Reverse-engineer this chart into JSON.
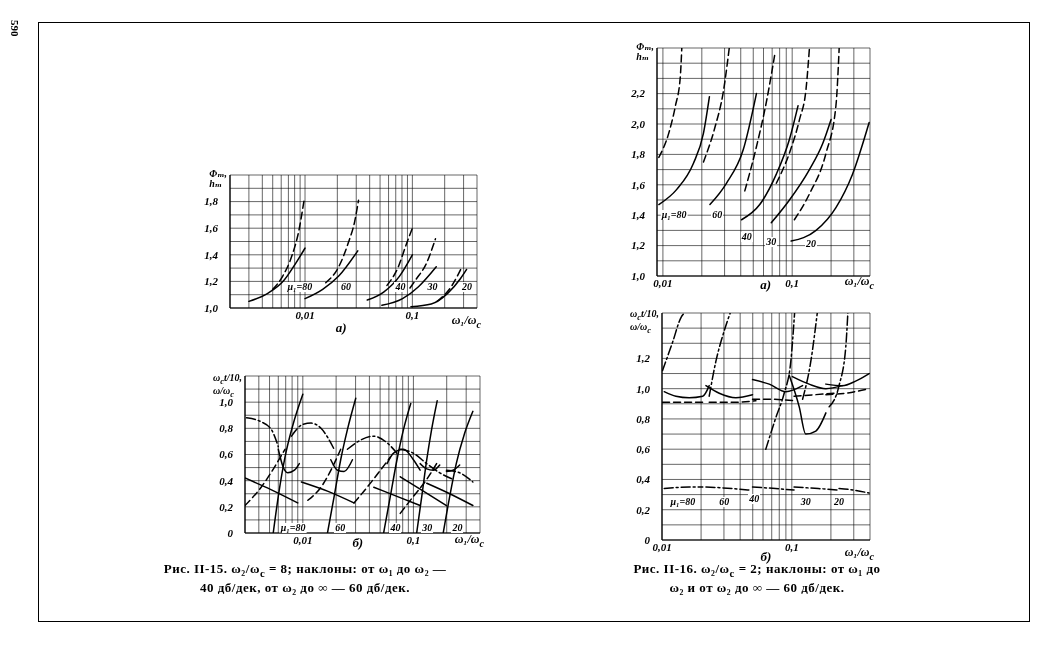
{
  "chart_data": [
    {
      "type": "line",
      "title": "а)",
      "xlabel": "ω₁/ω$_{c}$",
      "ylabel": "Φₘ, hₘ",
      "log": "x",
      "grid": true,
      "xlim": [
        0.002,
        0.4
      ],
      "xticks": [
        {
          "value": 0.002,
          "label": null
        },
        {
          "value": 0.003,
          "label": null
        },
        {
          "value": 0.004,
          "label": null
        },
        {
          "value": 0.005,
          "label": null
        },
        {
          "value": 0.006,
          "label": null
        },
        {
          "value": 0.007,
          "label": null
        },
        {
          "value": 0.008,
          "label": null
        },
        {
          "value": 0.009,
          "label": null
        },
        {
          "value": 0.01,
          "label": "0,01"
        },
        {
          "value": 0.02,
          "label": null
        },
        {
          "value": 0.03,
          "label": null
        },
        {
          "value": 0.04,
          "label": null
        },
        {
          "value": 0.05,
          "label": null
        },
        {
          "value": 0.06,
          "label": null
        },
        {
          "value": 0.07,
          "label": null
        },
        {
          "value": 0.08,
          "label": null
        },
        {
          "value": 0.09,
          "label": null
        },
        {
          "value": 0.1,
          "label": "0,1"
        },
        {
          "value": 0.2,
          "label": null
        },
        {
          "value": 0.3,
          "label": null
        },
        {
          "value": 0.4,
          "label": null
        }
      ],
      "ylim": [
        1,
        2
      ],
      "yticks": [
        {
          "value": 1,
          "label": "1,0"
        },
        {
          "value": 1.1,
          "label": null
        },
        {
          "value": 1.2,
          "label": "1,2"
        },
        {
          "value": 1.3,
          "label": null
        },
        {
          "value": 1.4,
          "label": "1,4"
        },
        {
          "value": 1.5,
          "label": null
        },
        {
          "value": 1.6,
          "label": "1,6"
        },
        {
          "value": 1.7,
          "label": null
        },
        {
          "value": 1.8,
          "label": "1,8"
        },
        {
          "value": 1.9,
          "label": null
        },
        {
          "value": 2,
          "label": null
        }
      ],
      "series": [
        {
          "color": "#000000",
          "line_style": "solid",
          "x": [
            0.003,
            0.0045,
            0.0064,
            0.0081,
            0.01
          ],
          "values": [
            1.05,
            1.11,
            1.21,
            1.33,
            1.45
          ]
        },
        {
          "color": "#000000",
          "line_style": "dashed",
          "x": [
            0.005,
            0.0062,
            0.0076,
            0.0087,
            0.0098
          ],
          "values": [
            1.14,
            1.24,
            1.4,
            1.57,
            1.81
          ]
        },
        {
          "color": "#000000",
          "line_style": "solid",
          "x": [
            0.01,
            0.0146,
            0.0206,
            0.031
          ],
          "values": [
            1.07,
            1.14,
            1.24,
            1.43
          ]
        },
        {
          "color": "#000000",
          "line_style": "dashed",
          "x": [
            0.0156,
            0.0206,
            0.0253,
            0.029,
            0.0315
          ],
          "values": [
            1.19,
            1.31,
            1.49,
            1.65,
            1.81
          ]
        },
        {
          "color": "#000000",
          "line_style": "solid",
          "x": [
            0.038,
            0.054,
            0.076,
            0.1
          ],
          "values": [
            1.06,
            1.12,
            1.24,
            1.4
          ]
        },
        {
          "color": "#000000",
          "line_style": "dashed",
          "x": [
            0.058,
            0.074,
            0.087,
            0.1
          ],
          "values": [
            1.17,
            1.31,
            1.47,
            1.6
          ]
        },
        {
          "color": "#000000",
          "line_style": "solid",
          "x": [
            0.052,
            0.081,
            0.114,
            0.167
          ],
          "values": [
            1.02,
            1.07,
            1.16,
            1.31
          ]
        },
        {
          "color": "#000000",
          "line_style": "dashed",
          "x": [
            0.095,
            0.107,
            0.136,
            0.164
          ],
          "values": [
            1.15,
            1.21,
            1.34,
            1.52
          ]
        },
        {
          "color": "#000000",
          "line_style": "solid",
          "x": [
            0.097,
            0.15,
            0.213,
            0.28,
            0.32
          ],
          "values": [
            1.01,
            1.03,
            1.11,
            1.22,
            1.29
          ]
        },
        {
          "color": "#000000",
          "line_style": "dashed",
          "x": [
            0.17,
            0.23,
            0.29
          ],
          "values": [
            1.05,
            1.16,
            1.31
          ]
        }
      ],
      "annotations": [
        "590",
        "μ₁=80",
        "60",
        "40",
        "30",
        "20"
      ]
    },
    {
      "type": "line",
      "title": "б)",
      "xlabel": "ω₁/ω$_{c}$",
      "ylabel": "ω$_{c}$t/10, ω/ω$_{c}$",
      "log": "x",
      "grid": true,
      "xlim": [
        0.003,
        0.4
      ],
      "xticks": [
        {
          "value": 0.003,
          "label": null
        },
        {
          "value": 0.004,
          "label": null
        },
        {
          "value": 0.005,
          "label": null
        },
        {
          "value": 0.006,
          "label": null
        },
        {
          "value": 0.007,
          "label": null
        },
        {
          "value": 0.008,
          "label": null
        },
        {
          "value": 0.009,
          "label": null
        },
        {
          "value": 0.01,
          "label": "0,01"
        },
        {
          "value": 0.02,
          "label": null
        },
        {
          "value": 0.03,
          "label": null
        },
        {
          "value": 0.04,
          "label": null
        },
        {
          "value": 0.05,
          "label": null
        },
        {
          "value": 0.06,
          "label": null
        },
        {
          "value": 0.07,
          "label": null
        },
        {
          "value": 0.08,
          "label": null
        },
        {
          "value": 0.09,
          "label": null
        },
        {
          "value": 0.1,
          "label": "0,1"
        },
        {
          "value": 0.2,
          "label": null
        },
        {
          "value": 0.3,
          "label": null
        },
        {
          "value": 0.4,
          "label": null
        }
      ],
      "ylim": [
        0,
        1.2
      ],
      "yticks": [
        0,
        {
          "value": 0.1,
          "label": null
        },
        {
          "value": 0.2,
          "label": "0,2"
        },
        {
          "value": 0.3,
          "label": null
        },
        {
          "value": 0.4,
          "label": "0,4"
        },
        {
          "value": 0.5,
          "label": null
        },
        {
          "value": 0.6,
          "label": "0,6"
        },
        {
          "value": 0.7,
          "label": null
        },
        {
          "value": 0.8,
          "label": "0,8"
        },
        {
          "value": 0.9,
          "label": null
        },
        {
          "value": 1,
          "label": "1,0"
        },
        {
          "value": 1.1,
          "label": null
        },
        {
          "value": 1.2,
          "label": null
        }
      ],
      "series": [
        {
          "color": "#000000",
          "line_style": "solid",
          "x": [
            0.0054,
            0.006,
            0.0069,
            0.0081,
            0.01
          ],
          "values": [
            0,
            0.28,
            0.58,
            0.82,
            1.06
          ]
        },
        {
          "color": "#000000",
          "line_style": "solid",
          "x": [
            0.003,
            0.0052,
            0.009
          ],
          "values": [
            0.42,
            0.33,
            0.23
          ]
        },
        {
          "color": "#000000",
          "line_style": "dashed",
          "x": [
            0.003,
            0.0042,
            0.0056,
            0.0069
          ],
          "values": [
            0.21,
            0.35,
            0.51,
            0.64
          ]
        },
        {
          "color": "#000000",
          "line_style": "dashdot",
          "x": [
            0.0031,
            0.0042,
            0.0052,
            0.006
          ],
          "values": [
            0.88,
            0.85,
            0.79,
            0.66
          ]
        },
        {
          "color": "#000000",
          "line_style": "solid",
          "x": [
            0.006,
            0.0066,
            0.0073,
            0.0084,
            0.0093
          ],
          "values": [
            0.64,
            0.51,
            0.46,
            0.48,
            0.53
          ]
        },
        {
          "color": "#000000",
          "line_style": "solid",
          "x": [
            0.0167,
            0.0192,
            0.022,
            0.0253,
            0.0301
          ],
          "values": [
            0,
            0.28,
            0.56,
            0.79,
            1.03
          ]
        },
        {
          "color": "#000000",
          "line_style": "solid",
          "x": [
            0.0097,
            0.0167,
            0.029
          ],
          "values": [
            0.39,
            0.32,
            0.23
          ]
        },
        {
          "color": "#000000",
          "line_style": "dashed",
          "x": [
            0.0111,
            0.0146,
            0.0192,
            0.022
          ],
          "values": [
            0.25,
            0.35,
            0.53,
            0.64
          ]
        },
        {
          "color": "#000000",
          "line_style": "dashdot",
          "x": [
            0.0079,
            0.01,
            0.0119,
            0.0146,
            0.0192
          ],
          "values": [
            0.74,
            0.83,
            0.84,
            0.8,
            0.64
          ]
        },
        {
          "color": "#000000",
          "line_style": "solid",
          "x": [
            0.0179,
            0.0206,
            0.0236,
            0.0281
          ],
          "values": [
            0.56,
            0.48,
            0.47,
            0.56
          ]
        },
        {
          "color": "#000000",
          "line_style": "solid",
          "x": [
            0.0538,
            0.0618,
            0.071,
            0.0813,
            0.0946
          ],
          "values": [
            0,
            0.28,
            0.56,
            0.79,
            0.99
          ]
        },
        {
          "color": "#000000",
          "line_style": "solid",
          "x": [
            0.0438,
            0.071,
            0.115
          ],
          "values": [
            0.35,
            0.28,
            0.21
          ]
        },
        {
          "color": "#000000",
          "line_style": "dashed",
          "x": [
            0.029,
            0.0382,
            0.0503,
            0.0618
          ],
          "values": [
            0.23,
            0.35,
            0.48,
            0.58
          ]
        },
        {
          "color": "#000000",
          "line_style": "dashdot",
          "x": [
            0.0253,
            0.0333,
            0.0438,
            0.0577,
            0.071
          ],
          "values": [
            0.64,
            0.71,
            0.74,
            0.69,
            0.61
          ]
        },
        {
          "color": "#000000",
          "line_style": "solid",
          "x": [
            0.0577,
            0.0662,
            0.0813,
            0.1,
            0.115
          ],
          "values": [
            0.53,
            0.61,
            0.64,
            0.56,
            0.48
          ]
        },
        {
          "color": "#000000",
          "line_style": "solid",
          "x": [
            0.107,
            0.119,
            0.132,
            0.146,
            0.164
          ],
          "values": [
            0,
            0.28,
            0.56,
            0.79,
            1.01
          ]
        },
        {
          "color": "#000000",
          "line_style": "solid",
          "x": [
            0.076,
            0.123,
            0.199
          ],
          "values": [
            0.43,
            0.32,
            0.21
          ]
        },
        {
          "color": "#000000",
          "line_style": "dashed",
          "x": [
            0.076,
            0.1,
            0.132,
            0.162
          ],
          "values": [
            0.15,
            0.28,
            0.41,
            0.53
          ]
        },
        {
          "color": "#000000",
          "line_style": "dashdot",
          "x": [
            0.076,
            0.1,
            0.132,
            0.173,
            0.228
          ],
          "values": [
            0.64,
            0.61,
            0.53,
            0.46,
            0.41
          ]
        },
        {
          "color": "#000000",
          "line_style": "solid",
          "x": [
            0.115,
            0.132,
            0.151,
            0.173
          ],
          "values": [
            0.53,
            0.49,
            0.48,
            0.52
          ]
        },
        {
          "color": "#000000",
          "line_style": "solid",
          "x": [
            0.186,
            0.213,
            0.244,
            0.29,
            0.345
          ],
          "values": [
            0,
            0.28,
            0.53,
            0.76,
            0.93
          ]
        },
        {
          "color": "#000000",
          "line_style": "solid",
          "x": [
            0.132,
            0.213,
            0.345
          ],
          "values": [
            0.38,
            0.3,
            0.21
          ]
        },
        {
          "color": "#000000",
          "line_style": "dashdot",
          "x": [
            0.199,
            0.262,
            0.345
          ],
          "values": [
            0.48,
            0.46,
            0.39
          ]
        },
        {
          "color": "#000000",
          "line_style": "solid",
          "x": [
            0.199,
            0.228,
            0.262
          ],
          "values": [
            0.47,
            0.48,
            0.52
          ]
        }
      ],
      "annotations": [
        "Рис. II-15. ω₂/ω$_{c}$ = 8; наклоны: от ω₁ до ω₂ — 40 дб/дек, от ω₂ до ∞ — 60 дб/дек.",
        "μ₁=80",
        "60",
        "40",
        "30",
        "20"
      ]
    },
    {
      "type": "line",
      "title": "а)",
      "xlabel": "ω₁/ω$_{c}$",
      "ylabel": "Φₘ, hₘ",
      "log": "x",
      "grid": true,
      "xlim": [
        0.009,
        0.4
      ],
      "xticks": [
        {
          "value": 0.009,
          "label": null
        },
        {
          "value": 0.01,
          "label": "0,01"
        },
        {
          "value": 0.02,
          "label": null
        },
        {
          "value": 0.03,
          "label": null
        },
        {
          "value": 0.04,
          "label": null
        },
        {
          "value": 0.05,
          "label": null
        },
        {
          "value": 0.06,
          "label": null
        },
        {
          "value": 0.07,
          "label": null
        },
        {
          "value": 0.08,
          "label": null
        },
        {
          "value": 0.09,
          "label": null
        },
        {
          "value": 0.1,
          "label": "0,1"
        },
        {
          "value": 0.2,
          "label": null
        },
        {
          "value": 0.3,
          "label": null
        },
        {
          "value": 0.4,
          "label": null
        }
      ],
      "ylim": [
        1,
        2.5
      ],
      "yticks": [
        {
          "value": 1,
          "label": "1,0"
        },
        {
          "value": 1.1,
          "label": null
        },
        {
          "value": 1.2,
          "label": "1,2"
        },
        {
          "value": 1.3,
          "label": null
        },
        {
          "value": 1.4,
          "label": "1,4"
        },
        {
          "value": 1.5,
          "label": null
        },
        {
          "value": 1.6,
          "label": "1,6"
        },
        {
          "value": 1.7,
          "label": null
        },
        {
          "value": 1.8,
          "label": "1,8"
        },
        {
          "value": 1.9,
          "label": null
        },
        {
          "value": 2,
          "label": "2,0"
        },
        {
          "value": 2.1,
          "label": null
        },
        {
          "value": 2.2,
          "label": "2,2"
        },
        {
          "value": 2.3,
          "label": null
        },
        {
          "value": 2.4,
          "label": null
        },
        {
          "value": 2.5,
          "label": null
        }
      ],
      "series": [
        {
          "color": "#000000",
          "line_style": "solid",
          "x": [
            0.0093,
            0.0128,
            0.0172,
            0.0206,
            0.0229
          ],
          "values": [
            1.47,
            1.57,
            1.74,
            1.94,
            2.18
          ]
        },
        {
          "color": "#000000",
          "line_style": "dashed",
          "x": [
            0.0093,
            0.0111,
            0.0125,
            0.0136,
            0.014
          ],
          "values": [
            1.78,
            1.94,
            2.12,
            2.3,
            2.5
          ]
        },
        {
          "color": "#000000",
          "line_style": "solid",
          "x": [
            0.0231,
            0.031,
            0.0418,
            0.0529
          ],
          "values": [
            1.47,
            1.61,
            1.83,
            2.2
          ]
        },
        {
          "color": "#000000",
          "line_style": "dashed",
          "x": [
            0.0206,
            0.0253,
            0.0293,
            0.0326
          ],
          "values": [
            1.75,
            1.98,
            2.21,
            2.5
          ]
        },
        {
          "color": "#000000",
          "line_style": "solid",
          "x": [
            0.0406,
            0.0561,
            0.0754,
            0.0953,
            0.111
          ],
          "values": [
            1.37,
            1.47,
            1.67,
            1.9,
            2.12
          ]
        },
        {
          "color": "#000000",
          "line_style": "dashed",
          "x": [
            0.043,
            0.0529,
            0.063,
            0.0731
          ],
          "values": [
            1.56,
            1.85,
            2.14,
            2.45
          ]
        },
        {
          "color": "#000000",
          "line_style": "solid",
          "x": [
            0.0689,
            0.0953,
            0.136,
            0.172,
            0.2
          ],
          "values": [
            1.35,
            1.5,
            1.7,
            1.87,
            2.03
          ]
        },
        {
          "color": "#000000",
          "line_style": "dashed",
          "x": [
            0.0754,
            0.0953,
            0.114,
            0.128,
            0.136
          ],
          "values": [
            1.61,
            1.81,
            2.03,
            2.23,
            2.5
          ]
        },
        {
          "color": "#000000",
          "line_style": "solid",
          "x": [
            0.0982,
            0.153,
            0.218,
            0.293,
            0.394
          ],
          "values": [
            1.23,
            1.3,
            1.45,
            1.67,
            2.01
          ]
        },
        {
          "color": "#000000",
          "line_style": "dashed",
          "x": [
            0.104,
            0.136,
            0.183,
            0.218,
            0.231
          ],
          "values": [
            1.37,
            1.54,
            1.81,
            2.12,
            2.5
          ]
        }
      ],
      "annotations": [
        "μ₁=80",
        "60",
        "40",
        "30",
        "20"
      ]
    },
    {
      "type": "line",
      "title": "б)",
      "xlabel": "ω₁/ω$_{c}$",
      "ylabel": "ω$_{c}$t/10, ω/ω$_{c}$",
      "log": "x",
      "grid": true,
      "xlim": [
        0.01,
        0.4
      ],
      "xticks": [
        {
          "value": 0.01,
          "label": "0,01"
        },
        {
          "value": 0.02,
          "label": null
        },
        {
          "value": 0.03,
          "label": null
        },
        {
          "value": 0.04,
          "label": null
        },
        {
          "value": 0.05,
          "label": null
        },
        {
          "value": 0.06,
          "label": null
        },
        {
          "value": 0.07,
          "label": null
        },
        {
          "value": 0.08,
          "label": null
        },
        {
          "value": 0.09,
          "label": null
        },
        {
          "value": 0.1,
          "label": "0,1"
        },
        {
          "value": 0.2,
          "label": null
        },
        {
          "value": 0.3,
          "label": null
        },
        {
          "value": 0.4,
          "label": null
        }
      ],
      "ylim": [
        0,
        1.5
      ],
      "yticks": [
        0,
        {
          "value": 0.1,
          "label": null
        },
        {
          "value": 0.2,
          "label": "0,2"
        },
        {
          "value": 0.3,
          "label": null
        },
        {
          "value": 0.4,
          "label": "0,4"
        },
        {
          "value": 0.5,
          "label": null
        },
        {
          "value": 0.6,
          "label": "0,6"
        },
        {
          "value": 0.7,
          "label": null
        },
        {
          "value": 0.8,
          "label": "0,8"
        },
        {
          "value": 0.9,
          "label": null
        },
        {
          "value": 1,
          "label": "1,0"
        },
        {
          "value": 1.1,
          "label": null
        },
        {
          "value": 1.2,
          "label": "1,2"
        },
        {
          "value": 1.3,
          "label": null
        },
        {
          "value": 1.4,
          "label": null
        },
        {
          "value": 1.5,
          "label": null
        }
      ],
      "series": [
        {
          "color": "#000000",
          "line_style": "solid",
          "x": [
            0.0104,
            0.0128,
            0.0162,
            0.0206,
            0.0231
          ],
          "values": [
            0.98,
            0.95,
            0.94,
            0.95,
            1.02
          ]
        },
        {
          "color": "#000000",
          "line_style": "dashed",
          "x": [
            0.0101,
            0.0144,
            0.0206
          ],
          "values": [
            0.91,
            0.91,
            0.91
          ]
        },
        {
          "color": "#000000",
          "line_style": "dashdot",
          "x": [
            0.0101,
            0.0121,
            0.014,
            0.0149
          ],
          "values": [
            1.12,
            1.31,
            1.47,
            1.5
          ]
        },
        {
          "color": "#000000",
          "line_style": "dashdot",
          "x": [
            0.0104,
            0.0162,
            0.0206
          ],
          "values": [
            0.34,
            0.35,
            0.35
          ]
        },
        {
          "color": "#000000",
          "line_style": "solid",
          "x": [
            0.0218,
            0.0276,
            0.0371,
            0.0498
          ],
          "values": [
            1.02,
            0.97,
            0.94,
            0.96
          ]
        },
        {
          "color": "#000000",
          "line_style": "dashdot",
          "x": [
            0.0231,
            0.026,
            0.0301,
            0.0335
          ],
          "values": [
            0.95,
            1.18,
            1.38,
            1.5
          ]
        },
        {
          "color": "#000000",
          "line_style": "dashed",
          "x": [
            0.0231,
            0.035,
            0.0529
          ],
          "values": [
            0.91,
            0.91,
            0.92
          ]
        },
        {
          "color": "#000000",
          "line_style": "dashdot",
          "x": [
            0.0218,
            0.035,
            0.047
          ],
          "values": [
            0.35,
            0.34,
            0.33
          ]
        },
        {
          "color": "#000000",
          "line_style": "solid",
          "x": [
            0.0498,
            0.067,
            0.09,
            0.121
          ],
          "values": [
            1.06,
            1.03,
            0.98,
            1.02
          ]
        },
        {
          "color": "#000000",
          "line_style": "dashdot",
          "x": [
            0.063,
            0.0754,
            0.0873,
            0.0982,
            0.105
          ],
          "values": [
            0.6,
            0.81,
            0.97,
            1.18,
            1.5
          ]
        },
        {
          "color": "#000000",
          "line_style": "dashed",
          "x": [
            0.0498,
            0.07,
            0.104
          ],
          "values": [
            0.93,
            0.93,
            0.92
          ]
        },
        {
          "color": "#000000",
          "line_style": "dashdot",
          "x": [
            0.0498,
            0.075,
            0.104
          ],
          "values": [
            0.35,
            0.34,
            0.33
          ]
        },
        {
          "color": "#000000",
          "line_style": "solid",
          "x": [
            0.0953,
            0.114,
            0.128,
            0.153,
            0.183
          ],
          "values": [
            1.09,
            0.88,
            0.7,
            0.72,
            0.84
          ]
        },
        {
          "color": "#000000",
          "line_style": "solid",
          "x": [
            0.101,
            0.136,
            0.183,
            0.245
          ],
          "values": [
            1.08,
            1.03,
            1,
            1.02
          ]
        },
        {
          "color": "#000000",
          "line_style": "dashdot",
          "x": [
            0.121,
            0.14,
            0.157
          ],
          "values": [
            0.93,
            1.18,
            1.5
          ]
        },
        {
          "color": "#000000",
          "line_style": "dashed",
          "x": [
            0.104,
            0.15,
            0.218
          ],
          "values": [
            0.95,
            0.96,
            0.97
          ]
        },
        {
          "color": "#000000",
          "line_style": "dashdot",
          "x": [
            0.104,
            0.16,
            0.23
          ],
          "values": [
            0.35,
            0.34,
            0.33
          ]
        },
        {
          "color": "#000000",
          "line_style": "solid",
          "x": [
            0.183,
            0.245,
            0.31,
            0.394
          ],
          "values": [
            1.03,
            1.02,
            1.05,
            1.1
          ]
        },
        {
          "color": "#000000",
          "line_style": "dashdot",
          "x": [
            0.194,
            0.231,
            0.26,
            0.27
          ],
          "values": [
            0.88,
            1.02,
            1.27,
            1.5
          ]
        },
        {
          "color": "#000000",
          "line_style": "dashed",
          "x": [
            0.183,
            0.26,
            0.394
          ],
          "values": [
            0.96,
            0.97,
            1
          ]
        },
        {
          "color": "#000000",
          "line_style": "dashdot",
          "x": [
            0.231,
            0.3,
            0.394
          ],
          "values": [
            0.34,
            0.33,
            0.31
          ]
        }
      ],
      "annotations": [
        "Рис. II-16. ω₂/ω$_{c}$ = 2; наклоны: от ω₁ до ω₂ и от ω₂ до ∞ — 60 дб/дек.",
        "μ₁=80",
        "60",
        "40",
        "30",
        "20"
      ]
    }
  ]
}
